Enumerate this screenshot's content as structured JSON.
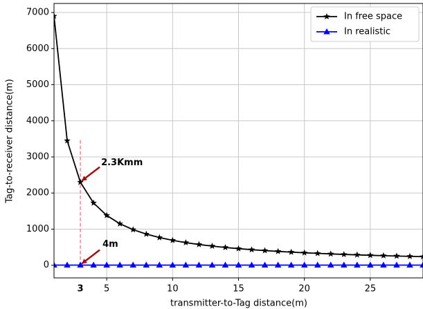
{
  "chart_data": {
    "type": "line",
    "x_label": "transmitter-to-Tag distance(m)",
    "y_label": "Tag-to-receiver distance(m)",
    "x": [
      1,
      2,
      3,
      4,
      5,
      6,
      7,
      8,
      9,
      10,
      11,
      12,
      13,
      14,
      15,
      16,
      17,
      18,
      19,
      20,
      21,
      22,
      23,
      24,
      25,
      26,
      27,
      28,
      29
    ],
    "series": [
      {
        "name": "In free space",
        "color": "#000000",
        "marker": "star",
        "values": [
          6900,
          3450,
          2300,
          1725,
          1380,
          1150,
          986,
          863,
          767,
          690,
          627,
          575,
          531,
          493,
          460,
          431,
          406,
          383,
          363,
          345,
          329,
          314,
          300,
          288,
          276,
          265,
          256,
          246,
          238
        ]
      },
      {
        "name": "In realistic",
        "color": "#0000ff",
        "marker": "triangle",
        "values": [
          4,
          4,
          4,
          4,
          4,
          4,
          4,
          4,
          4,
          4,
          4,
          4,
          4,
          4,
          4,
          4,
          4,
          4,
          4,
          4,
          4,
          4,
          4,
          4,
          4,
          4,
          4,
          4,
          4
        ]
      }
    ],
    "xlim": [
      1,
      29
    ],
    "ylim": [
      -350,
      7250
    ],
    "xticks": [
      5,
      10,
      15,
      20,
      25
    ],
    "yticks": [
      0,
      1000,
      2000,
      3000,
      4000,
      5000,
      6000,
      7000
    ],
    "highlight_xtick": 3,
    "annotations": [
      {
        "text": "2.3Kmm"
      },
      {
        "text": "4m"
      }
    ],
    "grid": true,
    "legend": "upper right"
  }
}
